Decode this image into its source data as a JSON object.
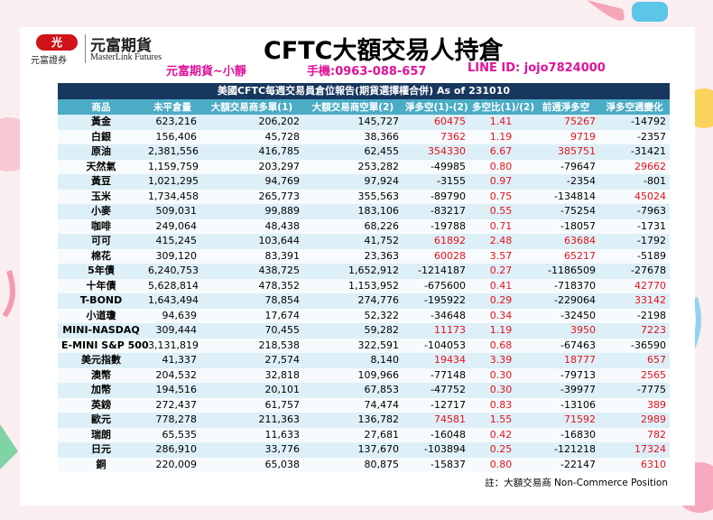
{
  "logo": {
    "mark": "光",
    "sub": "元富證券",
    "name": "元富期貨",
    "en": "MasterLink Futures"
  },
  "header": {
    "title": "CFTC大額交易人持倉",
    "contact": [
      "元富期貨~小靜",
      "手機:0963-088-657",
      "LINE ID: jojo7824000"
    ]
  },
  "table": {
    "title": "美國CFTC每週交易員倉位報告(期貨選擇權合併) As of  231010",
    "columns": [
      "商品",
      "未平倉量",
      "大額交易商多單(1)",
      "大額交易商空單(2)",
      "淨多空(1)-(2)",
      "多空比(1)/(2)",
      "前週淨多空",
      "淨多空週變化"
    ],
    "rows": [
      [
        "黃金",
        "623,216",
        "206,202",
        "145,727",
        "60475",
        "1.41",
        "75267",
        "-14792"
      ],
      [
        "白銀",
        "156,406",
        "45,728",
        "38,366",
        "7362",
        "1.19",
        "9719",
        "-2357"
      ],
      [
        "原油",
        "2,381,556",
        "416,785",
        "62,455",
        "354330",
        "6.67",
        "385751",
        "-31421"
      ],
      [
        "天然氣",
        "1,159,759",
        "203,297",
        "253,282",
        "-49985",
        "0.80",
        "-79647",
        "29662"
      ],
      [
        "黃豆",
        "1,021,295",
        "94,769",
        "97,924",
        "-3155",
        "0.97",
        "-2354",
        "-801"
      ],
      [
        "玉米",
        "1,734,458",
        "265,773",
        "355,563",
        "-89790",
        "0.75",
        "-134814",
        "45024"
      ],
      [
        "小麥",
        "509,031",
        "99,889",
        "183,106",
        "-83217",
        "0.55",
        "-75254",
        "-7963"
      ],
      [
        "咖啡",
        "249,064",
        "48,438",
        "68,226",
        "-19788",
        "0.71",
        "-18057",
        "-1731"
      ],
      [
        "可可",
        "415,245",
        "103,644",
        "41,752",
        "61892",
        "2.48",
        "63684",
        "-1792"
      ],
      [
        "棉花",
        "309,120",
        "83,391",
        "23,363",
        "60028",
        "3.57",
        "65217",
        "-5189"
      ],
      [
        "5年債",
        "6,240,753",
        "438,725",
        "1,652,912",
        "-1214187",
        "0.27",
        "-1186509",
        "-27678"
      ],
      [
        "十年債",
        "5,628,814",
        "478,352",
        "1,153,952",
        "-675600",
        "0.41",
        "-718370",
        "42770"
      ],
      [
        "T-BOND",
        "1,643,494",
        "78,854",
        "274,776",
        "-195922",
        "0.29",
        "-229064",
        "33142"
      ],
      [
        "小道瓊",
        "94,639",
        "17,674",
        "52,322",
        "-34648",
        "0.34",
        "-32450",
        "-2198"
      ],
      [
        "MINI-NASDAQ",
        "309,444",
        "70,455",
        "59,282",
        "11173",
        "1.19",
        "3950",
        "7223"
      ],
      [
        "E-MINI S&P 500",
        "3,131,819",
        "218,538",
        "322,591",
        "-104053",
        "0.68",
        "-67463",
        "-36590"
      ],
      [
        "美元指數",
        "41,337",
        "27,574",
        "8,140",
        "19434",
        "3.39",
        "18777",
        "657"
      ],
      [
        "澳幣",
        "204,532",
        "32,818",
        "109,966",
        "-77148",
        "0.30",
        "-79713",
        "2565"
      ],
      [
        "加幣",
        "194,516",
        "20,101",
        "67,853",
        "-47752",
        "0.30",
        "-39977",
        "-7775"
      ],
      [
        "英鎊",
        "272,437",
        "61,757",
        "74,474",
        "-12717",
        "0.83",
        "-13106",
        "389"
      ],
      [
        "歐元",
        "778,278",
        "211,363",
        "136,782",
        "74581",
        "1.55",
        "71592",
        "2989"
      ],
      [
        "瑞朗",
        "65,535",
        "11,633",
        "27,681",
        "-16048",
        "0.42",
        "-16830",
        "782"
      ],
      [
        "日元",
        "286,910",
        "33,776",
        "137,670",
        "-103894",
        "0.25",
        "-121218",
        "17324"
      ],
      [
        "銅",
        "220,009",
        "65,038",
        "80,875",
        "-15837",
        "0.80",
        "-22147",
        "6310"
      ]
    ],
    "note": "註：大額交易商 Non-Commerce Position"
  }
}
